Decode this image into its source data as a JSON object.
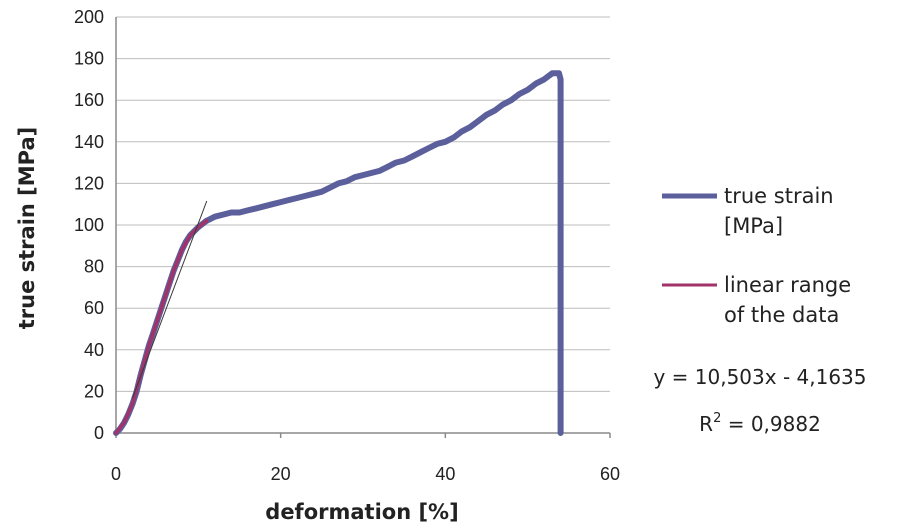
{
  "chart_data": {
    "type": "line",
    "xlabel": "deformation [%]",
    "ylabel": "true strain [MPa]",
    "xlim": [
      0,
      60
    ],
    "ylim": [
      0,
      200
    ],
    "x_ticks": [
      "0",
      "20",
      "40",
      "60"
    ],
    "y_ticks": [
      "0",
      "20",
      "40",
      "60",
      "80",
      "100",
      "120",
      "140",
      "160",
      "180",
      "200"
    ],
    "grid": "horizontal",
    "legend_position": "right",
    "series": [
      {
        "name": "true strain [MPa]",
        "color": "#5b5f9b",
        "x": [
          0,
          0.5,
          1,
          1.5,
          2,
          2.5,
          3,
          3.5,
          4,
          4.5,
          5,
          5.5,
          6,
          6.5,
          7,
          7.5,
          8,
          8.5,
          9,
          9.5,
          10,
          10.5,
          11,
          11.5,
          12,
          13,
          14,
          15,
          16,
          17,
          18,
          19,
          20,
          21,
          22,
          23,
          24,
          25,
          26,
          27,
          28,
          29,
          30,
          31,
          32,
          33,
          34,
          35,
          36,
          37,
          38,
          39,
          40,
          41,
          42,
          43,
          44,
          45,
          46,
          47,
          48,
          49,
          50,
          51,
          52,
          53,
          53.5,
          53.8,
          54,
          54,
          54
        ],
        "values": [
          0,
          2,
          5,
          9,
          14,
          20,
          28,
          35,
          42,
          48,
          54,
          60,
          66,
          72,
          78,
          83,
          88,
          92,
          95,
          97,
          99,
          100.5,
          102,
          103,
          104,
          105,
          106,
          106,
          107,
          108,
          109,
          110,
          111,
          112,
          113,
          114,
          115,
          116,
          118,
          120,
          121,
          123,
          124,
          125,
          126,
          128,
          130,
          131,
          133,
          135,
          137,
          139,
          140,
          142,
          145,
          147,
          150,
          153,
          155,
          158,
          160,
          163,
          165,
          168,
          170,
          173,
          173,
          173,
          170,
          100,
          0
        ]
      },
      {
        "name": "linear range of the data",
        "color": "#a2336a",
        "x": [
          0,
          1,
          2,
          3,
          4,
          5,
          6,
          7,
          8,
          9,
          10,
          11
        ],
        "values": [
          0,
          5,
          14,
          28,
          42,
          54,
          66,
          78,
          88,
          95,
          99,
          102
        ]
      },
      {
        "color": "#3a3a3a",
        "x": [
          2,
          11
        ],
        "values": [
          16.84,
          111.37
        ]
      }
    ],
    "annotation": {
      "equation": "y = 10,503x - 4,1635",
      "r2_label": "R",
      "r2_exp": "2",
      "r2_value": " = 0,9882"
    }
  }
}
